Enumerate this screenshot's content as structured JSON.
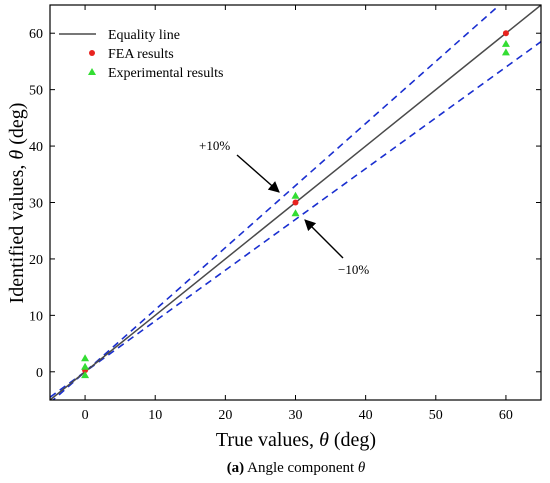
{
  "chart_data": {
    "type": "scatter",
    "xlabel_prefix": "True values, ",
    "xlabel_symbol": "θ",
    "xlabel_suffix": " (deg)",
    "ylabel_prefix": "Identified values, ",
    "ylabel_symbol": "θ",
    "ylabel_suffix": " (deg)",
    "xlim": [
      -5,
      65
    ],
    "ylim": [
      -5,
      65
    ],
    "xticks": [
      0,
      10,
      20,
      30,
      40,
      50,
      60
    ],
    "yticks": [
      0,
      10,
      20,
      30,
      40,
      50,
      60
    ],
    "grid": false,
    "legend_position": "top-left",
    "series": [
      {
        "name": "Equality line",
        "kind": "line",
        "slope": 1.0,
        "color": "#4a4a4a",
        "dash": "solid"
      },
      {
        "name": "FEA results",
        "kind": "points",
        "marker": "circle",
        "color": "#e8231f",
        "points": [
          [
            0,
            0.3
          ],
          [
            30,
            30.0
          ],
          [
            60,
            60.0
          ]
        ]
      },
      {
        "name": "Experimental results",
        "kind": "points",
        "marker": "triangle",
        "color": "#33dd33",
        "points": [
          [
            0,
            2.4
          ],
          [
            0,
            0.9
          ],
          [
            0,
            -0.6
          ],
          [
            30,
            31.2
          ],
          [
            30,
            28.1
          ],
          [
            60,
            58.1
          ],
          [
            60,
            56.6
          ]
        ]
      }
    ],
    "bounds": [
      {
        "label": "+10%",
        "slope": 1.1,
        "color": "#1a2fd0"
      },
      {
        "label": "−10%",
        "slope": 0.9,
        "color": "#1a2fd0"
      }
    ],
    "caption_label": "(a)",
    "caption_text_prefix": " Angle component ",
    "caption_symbol": "θ"
  }
}
